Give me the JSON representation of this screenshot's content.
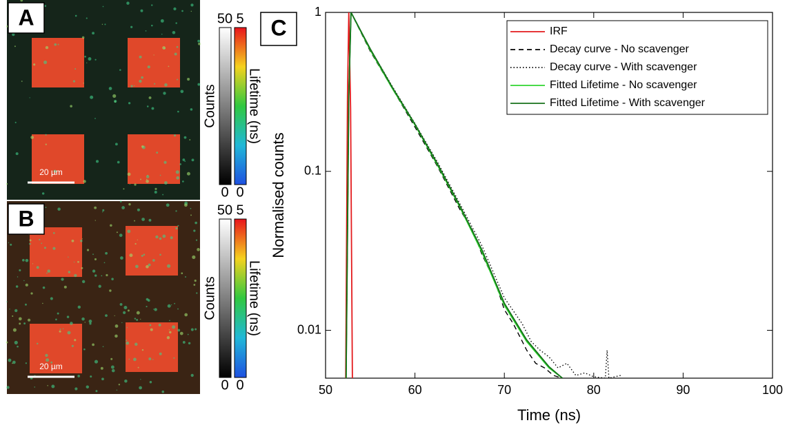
{
  "panels": [
    {
      "letter": "A",
      "scale_bar": "20 µm",
      "colorbars": [
        {
          "label": "Counts",
          "ticks": [
            0,
            50
          ]
        },
        {
          "label": "Lifetime (ns)",
          "ticks": [
            0,
            5
          ]
        }
      ]
    },
    {
      "letter": "B",
      "scale_bar": "20 µm",
      "colorbars": [
        {
          "label": "Counts",
          "ticks": [
            0,
            50
          ]
        },
        {
          "label": "Lifetime (ns)",
          "ticks": [
            0,
            5
          ]
        }
      ]
    }
  ],
  "chart_data": {
    "type": "line",
    "panel_letter": "C",
    "xlabel": "Time (ns)",
    "ylabel": "Normalised counts",
    "xlim": [
      50,
      100
    ],
    "xticks": [
      50,
      60,
      70,
      80,
      90,
      100
    ],
    "ylim": [
      0.005,
      1
    ],
    "yticks": [
      0.01,
      0.1,
      1
    ],
    "yscale": "log",
    "legend": "upper right",
    "series": [
      {
        "name": "IRF",
        "color": "#e31a1c",
        "style": "solid",
        "x": [
          52.25,
          52.45,
          52.6,
          52.8,
          53.0
        ],
        "values": [
          0.005,
          0.3,
          1,
          0.25,
          0.005
        ]
      },
      {
        "name": "Decay curve - No scavenger",
        "color": "#000000",
        "style": "dashed",
        "x": [
          52.3,
          52.6,
          52.85,
          55,
          57.5,
          60,
          62.5,
          65,
          66.5,
          67.5,
          69,
          70,
          71,
          72.5,
          73.5,
          74.5,
          75.5,
          76.5
        ],
        "values": [
          0.005,
          0.3,
          1,
          0.57,
          0.33,
          0.19,
          0.108,
          0.058,
          0.042,
          0.03,
          0.02,
          0.0135,
          0.011,
          0.0075,
          0.0062,
          0.0058,
          0.0052,
          0.005
        ]
      },
      {
        "name": "Decay curve - With scavenger",
        "color": "#000000",
        "style": "dotted",
        "x": [
          52.3,
          52.6,
          52.85,
          55,
          57.5,
          60,
          62.5,
          65,
          67.5,
          70,
          72,
          73,
          74,
          75,
          76,
          77,
          78,
          79,
          80,
          81.3,
          81.5,
          81.7,
          83
        ],
        "values": [
          0.005,
          0.3,
          1,
          0.59,
          0.34,
          0.2,
          0.115,
          0.063,
          0.034,
          0.016,
          0.011,
          0.0085,
          0.0075,
          0.0068,
          0.0058,
          0.0062,
          0.0052,
          0.0054,
          0.0051,
          0.005,
          0.0075,
          0.005,
          0.0052
        ]
      },
      {
        "name": "Fitted Lifetime - No scavenger",
        "color": "#2fd42f",
        "style": "solid",
        "x": [
          52.3,
          52.6,
          52.85,
          55,
          57.5,
          60,
          62.5,
          65,
          67.5,
          70,
          72.5,
          75,
          76.5
        ],
        "values": [
          0.005,
          0.3,
          1,
          0.58,
          0.33,
          0.196,
          0.11,
          0.06,
          0.031,
          0.0144,
          0.0085,
          0.0058,
          0.005
        ]
      },
      {
        "name": "Fitted Lifetime - With scavenger",
        "color": "#16701a",
        "style": "solid",
        "x": [
          52.3,
          52.6,
          52.85,
          55,
          57.5,
          60,
          62.5,
          65,
          67.5,
          70,
          72.5,
          75,
          76.5
        ],
        "values": [
          0.005,
          0.3,
          1,
          0.59,
          0.335,
          0.198,
          0.112,
          0.061,
          0.032,
          0.0148,
          0.0087,
          0.0059,
          0.005
        ]
      }
    ]
  }
}
